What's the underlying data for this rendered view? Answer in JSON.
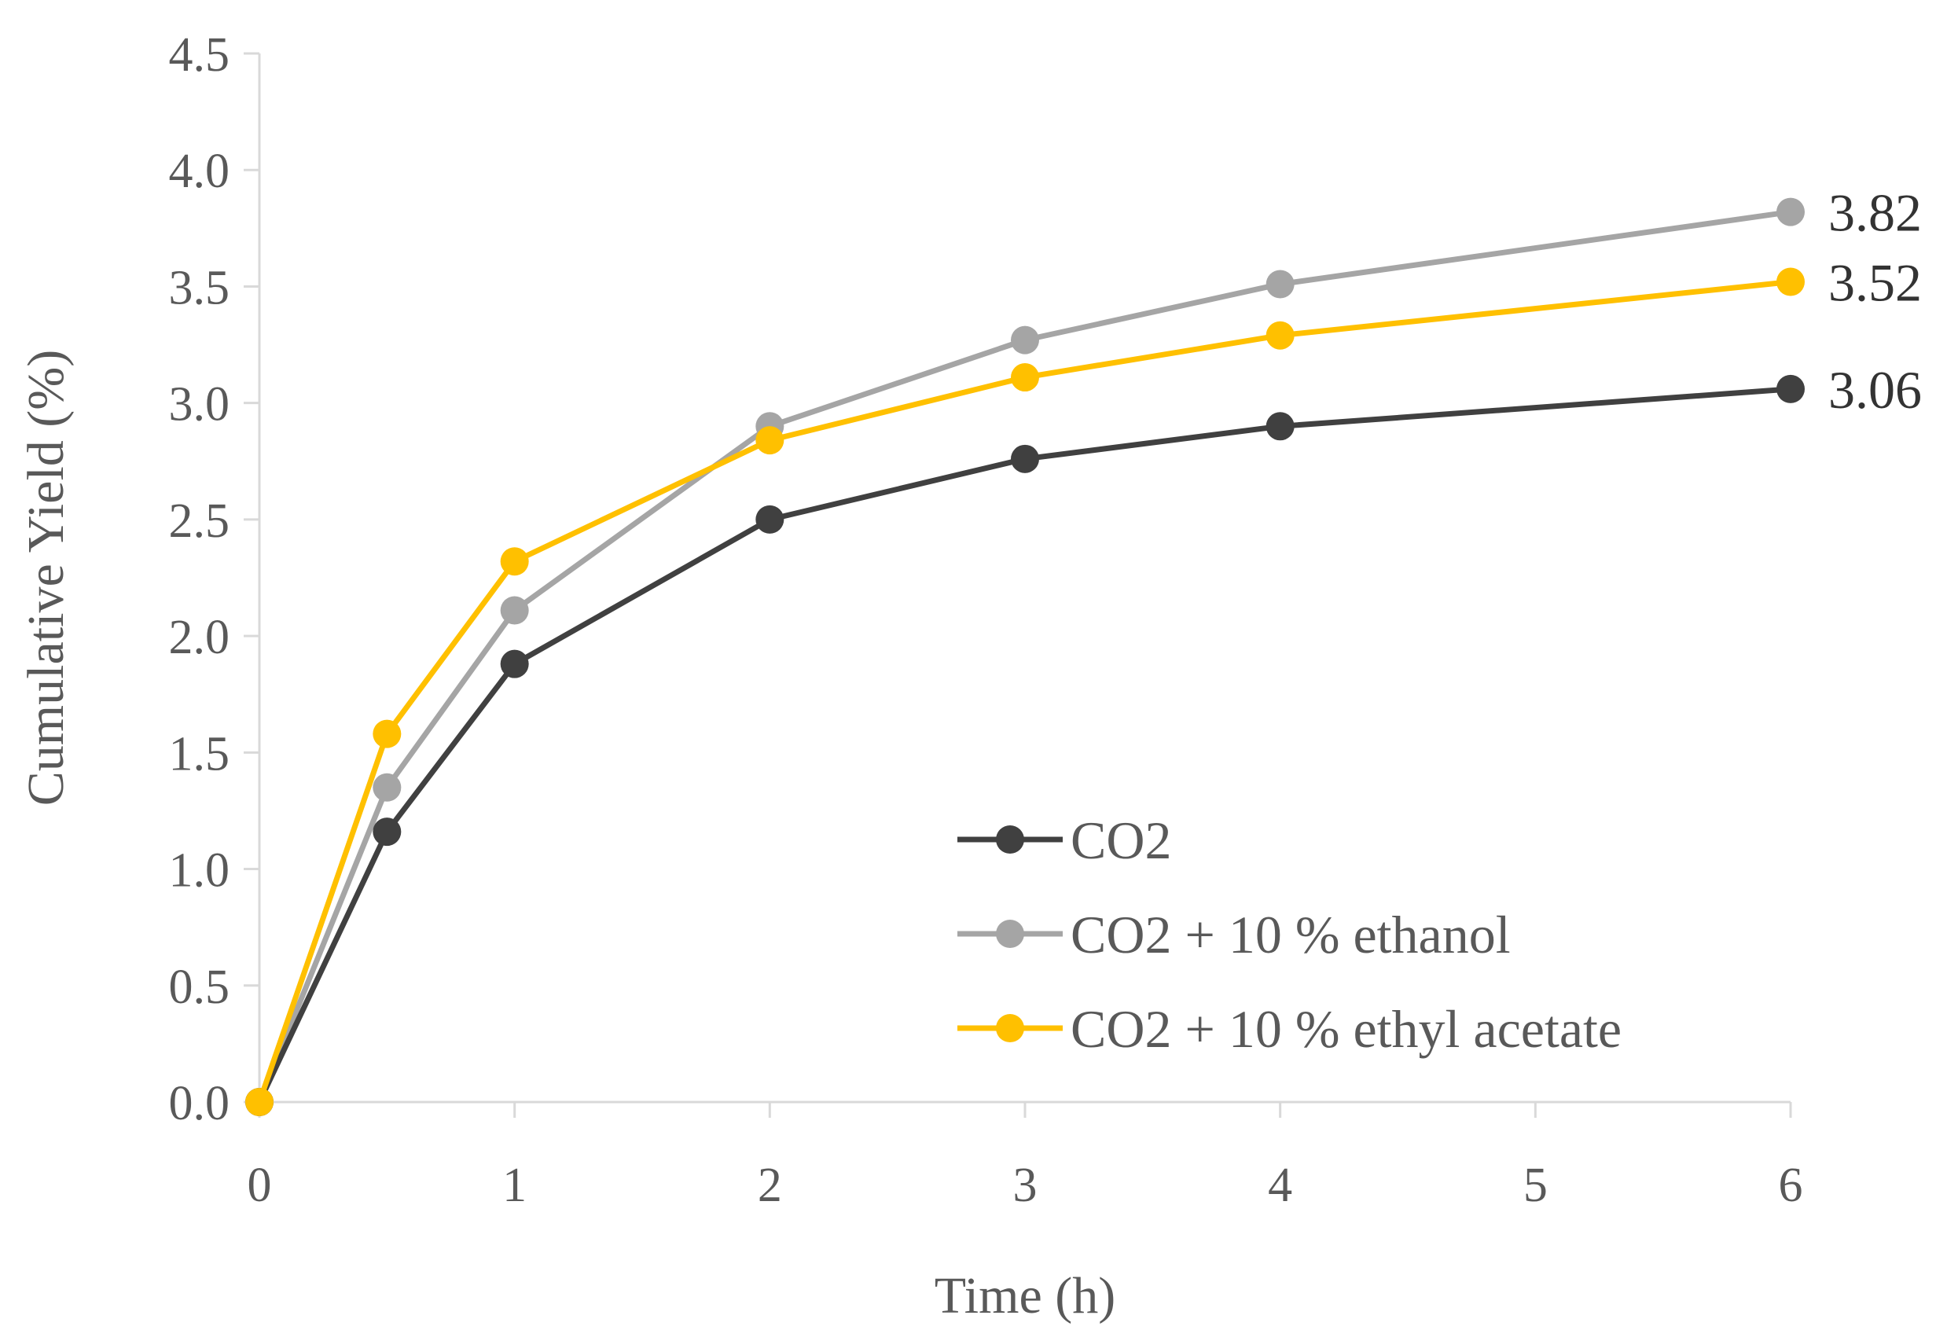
{
  "chart_data": {
    "type": "line",
    "title": "",
    "xlabel": "Time (h)",
    "ylabel": "Cumulative Yield (%)",
    "xlim": [
      0,
      6
    ],
    "ylim": [
      0,
      4.5
    ],
    "x_ticks": [
      0,
      1,
      2,
      3,
      4,
      5,
      6
    ],
    "x_tick_labels": [
      "0",
      "1",
      "2",
      "3",
      "4",
      "5",
      "6"
    ],
    "y_ticks": [
      0,
      0.5,
      1,
      1.5,
      2,
      2.5,
      3,
      3.5,
      4,
      4.5
    ],
    "y_tick_labels": [
      "0.0",
      "0.5",
      "1.0",
      "1.5",
      "2.0",
      "2.5",
      "3.0",
      "3.5",
      "4.0",
      "4.5"
    ],
    "grid": false,
    "legend_position": "bottom-right",
    "series": [
      {
        "name": "CO2",
        "color": "#404040",
        "x": [
          0,
          0.5,
          1,
          2,
          3,
          4,
          6
        ],
        "y": [
          0,
          1.16,
          1.88,
          2.5,
          2.76,
          2.9,
          3.06
        ],
        "end_label": "3.06"
      },
      {
        "name": "CO2 + 10 % ethanol",
        "color": "#a5a5a5",
        "x": [
          0,
          0.5,
          1,
          2,
          3,
          4,
          6
        ],
        "y": [
          0,
          1.35,
          2.11,
          2.9,
          3.27,
          3.51,
          3.82
        ],
        "end_label": "3.82"
      },
      {
        "name": "CO2 + 10 % ethyl acetate",
        "color": "#ffc000",
        "x": [
          0,
          0.5,
          1,
          2,
          3,
          4,
          6
        ],
        "y": [
          0,
          1.58,
          2.32,
          2.84,
          3.11,
          3.29,
          3.52
        ],
        "end_label": "3.52"
      }
    ],
    "axis_color": "#d9d9d9",
    "text_color": "#595959"
  }
}
